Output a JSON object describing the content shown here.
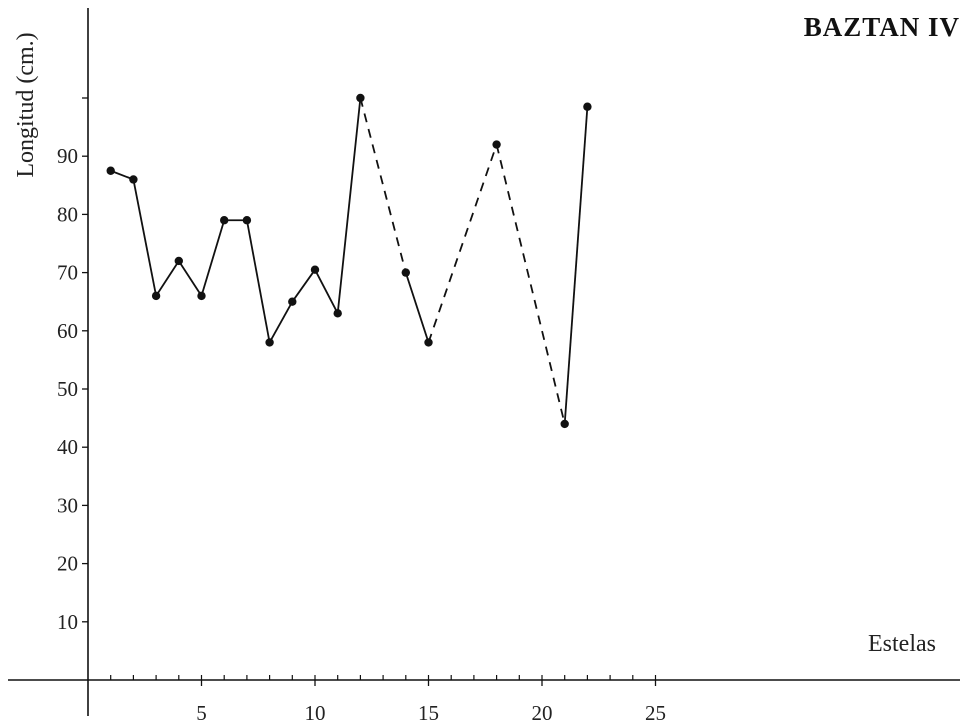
{
  "chart_data": {
    "type": "line",
    "title": "BAZTAN IV",
    "xlabel": "Estelas",
    "ylabel": "Longitud (cm.)",
    "xlim": [
      0,
      25
    ],
    "ylim": [
      0,
      100
    ],
    "x_ticks": [
      5,
      10,
      15,
      20,
      25
    ],
    "y_ticks": [
      10,
      20,
      30,
      40,
      50,
      60,
      70,
      80,
      90
    ],
    "grid": false,
    "series": [
      {
        "points": [
          {
            "x": 1,
            "y": 87.5
          },
          {
            "x": 2,
            "y": 86
          },
          {
            "x": 3,
            "y": 66
          },
          {
            "x": 4,
            "y": 72
          },
          {
            "x": 5,
            "y": 66
          },
          {
            "x": 6,
            "y": 79
          },
          {
            "x": 7,
            "y": 79
          },
          {
            "x": 8,
            "y": 58
          },
          {
            "x": 9,
            "y": 65
          },
          {
            "x": 10,
            "y": 70.5
          },
          {
            "x": 11,
            "y": 63
          },
          {
            "x": 12,
            "y": 100
          },
          {
            "x": 14,
            "y": 70
          },
          {
            "x": 15,
            "y": 58
          },
          {
            "x": 18,
            "y": 92
          },
          {
            "x": 21,
            "y": 44
          },
          {
            "x": 22,
            "y": 98.5
          }
        ],
        "segments": [
          {
            "from": 0,
            "to": 1,
            "style": "solid"
          },
          {
            "from": 1,
            "to": 2,
            "style": "solid"
          },
          {
            "from": 2,
            "to": 3,
            "style": "solid"
          },
          {
            "from": 3,
            "to": 4,
            "style": "solid"
          },
          {
            "from": 4,
            "to": 5,
            "style": "solid"
          },
          {
            "from": 5,
            "to": 6,
            "style": "solid"
          },
          {
            "from": 6,
            "to": 7,
            "style": "solid"
          },
          {
            "from": 7,
            "to": 8,
            "style": "solid"
          },
          {
            "from": 8,
            "to": 9,
            "style": "solid"
          },
          {
            "from": 9,
            "to": 10,
            "style": "solid"
          },
          {
            "from": 10,
            "to": 11,
            "style": "solid"
          },
          {
            "from": 11,
            "to": 12,
            "style": "dashed"
          },
          {
            "from": 12,
            "to": 13,
            "style": "solid"
          },
          {
            "from": 13,
            "to": 14,
            "style": "dashed"
          },
          {
            "from": 14,
            "to": 15,
            "style": "dashed"
          },
          {
            "from": 15,
            "to": 16,
            "style": "solid"
          }
        ],
        "color": "#111111"
      }
    ]
  }
}
